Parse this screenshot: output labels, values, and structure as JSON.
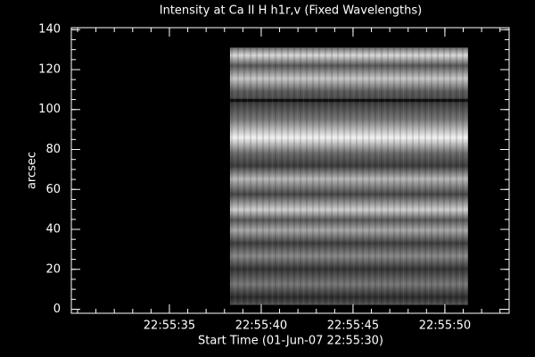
{
  "chart_data": {
    "type": "image",
    "title": "Intensity at Ca II H h1r,v (Fixed Wavelengths)",
    "x_label": "Start Time (01-Jun-07 22:55:30)",
    "y_label": "arcsec",
    "xlim": [
      -0.34,
      23.5
    ],
    "xticks": [
      {
        "value": 5,
        "label": "22:55:35"
      },
      {
        "value": 10,
        "label": "22:55:40"
      },
      {
        "value": 15,
        "label": "22:55:45"
      },
      {
        "value": 20,
        "label": "22:55:50"
      }
    ],
    "ylim": [
      -2,
      141
    ],
    "yticks": [
      0,
      20,
      40,
      60,
      80,
      100,
      120,
      140
    ],
    "xminor": 5,
    "yminor": 4,
    "image": {
      "xlim": [
        8.3,
        21.26
      ],
      "ylim": [
        2.2,
        131
      ],
      "colormap": "gray"
    }
  }
}
